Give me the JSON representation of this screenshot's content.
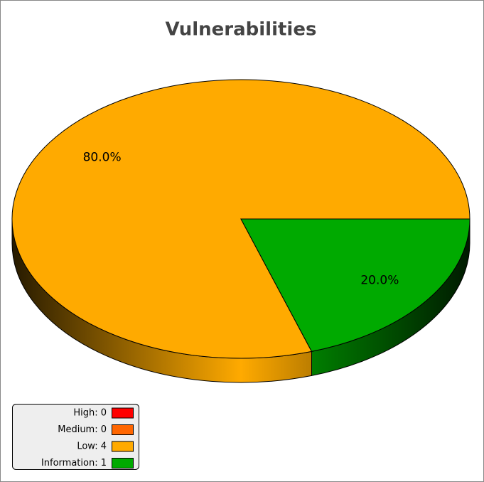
{
  "chart_data": {
    "type": "pie",
    "title": "Vulnerabilities",
    "categories": [
      "High: 0",
      "Medium: 0",
      "Low: 4",
      "Information: 1"
    ],
    "values": [
      0,
      0,
      80,
      20
    ],
    "value_labels": [
      null,
      null,
      "80.0%",
      "20.0%"
    ],
    "colors": [
      "#ff0000",
      "#ff6600",
      "#ffaa00",
      "#00aa00"
    ],
    "legend": "bottom-left"
  }
}
